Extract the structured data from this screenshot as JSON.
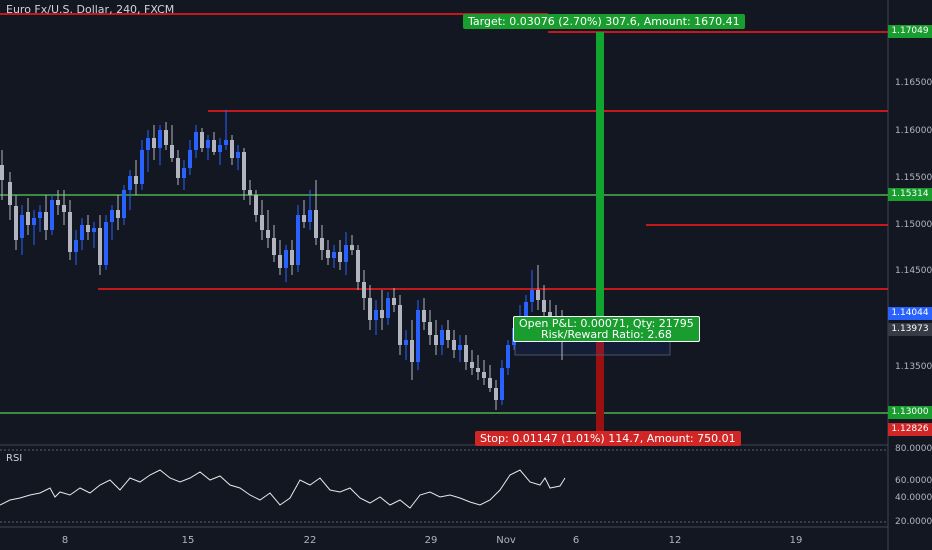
{
  "header": {
    "title": "Euro Fx/U.S. Dollar, 240, FXCM"
  },
  "rsi": {
    "label": "RSI",
    "ticks": [
      "80.0000",
      "60.0000",
      "40.0000",
      "20.0000"
    ]
  },
  "trade": {
    "target_text": "Target: 0.03076 (2.70%) 307.6, Amount: 1670.41",
    "stop_text": "Stop: 0.01147 (1.01%) 114.7, Amount: 750.01",
    "pnl_line1": "Open P&L: 0.00071, Qty: 21795",
    "pnl_line2": "Risk/Reward Ratio: 2.68"
  },
  "price_axis": {
    "ticks": [
      "1.16500",
      "1.16000",
      "1.15500",
      "1.15000",
      "1.14500",
      "1.13500"
    ],
    "tags": [
      {
        "value": "1.17049",
        "color": "#1a9d2f"
      },
      {
        "value": "1.15314",
        "color": "#1a9d2f"
      },
      {
        "value": "1.14044",
        "color": "#2962ff"
      },
      {
        "value": "1.13973",
        "color": "#363a45"
      },
      {
        "value": "1.13000",
        "color": "#1a9d2f"
      },
      {
        "value": "1.12826",
        "color": "#d12626"
      }
    ]
  },
  "time_axis": {
    "ticks": [
      "8",
      "15",
      "22",
      "29",
      "Nov",
      "6",
      "12",
      "19"
    ]
  },
  "colors": {
    "background": "#131722",
    "up": "#2962ff",
    "down": "#b2b5be",
    "resistance": "#ff1a1a",
    "support": "#4caf50"
  }
}
